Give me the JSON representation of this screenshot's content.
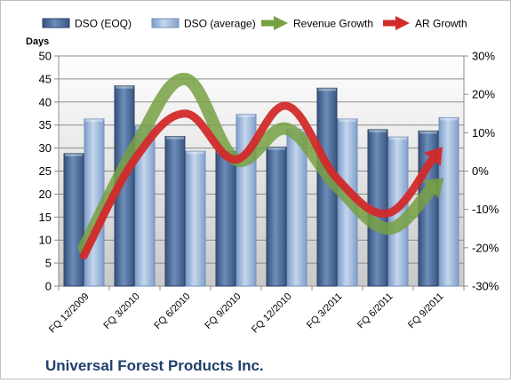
{
  "chart_data": {
    "type": "bar",
    "title": "Universal Forest Products Inc.",
    "ylabel": "Days",
    "ylim": [
      0,
      50
    ],
    "y2lim": [
      -30,
      30
    ],
    "yticks": [
      "0",
      "5",
      "10",
      "15",
      "20",
      "25",
      "30",
      "35",
      "40",
      "45",
      "50"
    ],
    "y2ticks": [
      "-30%",
      "-20%",
      "-10%",
      "0%",
      "10%",
      "20%",
      "30%"
    ],
    "grid": true,
    "legend_position": "top",
    "categories": [
      "FQ 12/2009",
      "FQ 3/2010",
      "FQ 6/2010",
      "FQ 9/2010",
      "FQ 12/2010",
      "FQ 3/2011",
      "FQ 6/2011",
      "FQ 9/2011"
    ],
    "series": [
      {
        "name": "DSO (EOQ)",
        "type": "bar",
        "axis": "left",
        "color": "#4f6b96",
        "values": [
          28.8,
          43.5,
          32.5,
          29.3,
          30.2,
          43.0,
          34.0,
          33.7
        ]
      },
      {
        "name": "DSO (average)",
        "type": "bar",
        "axis": "left",
        "color": "#9ab4d6",
        "values": [
          36.3,
          34.7,
          29.3,
          37.3,
          34.1,
          36.3,
          32.4,
          36.6
        ]
      },
      {
        "name": "Revenue Growth",
        "type": "line",
        "axis": "right",
        "unit": "%",
        "color": "#77a043",
        "values": [
          -20,
          6,
          24,
          3,
          11,
          -4,
          -15,
          -3
        ]
      },
      {
        "name": "AR Growth",
        "type": "line",
        "axis": "right",
        "unit": "%",
        "color": "#d22a2a",
        "values": [
          -22,
          3,
          15,
          3,
          17,
          -2,
          -11,
          5
        ]
      }
    ]
  }
}
